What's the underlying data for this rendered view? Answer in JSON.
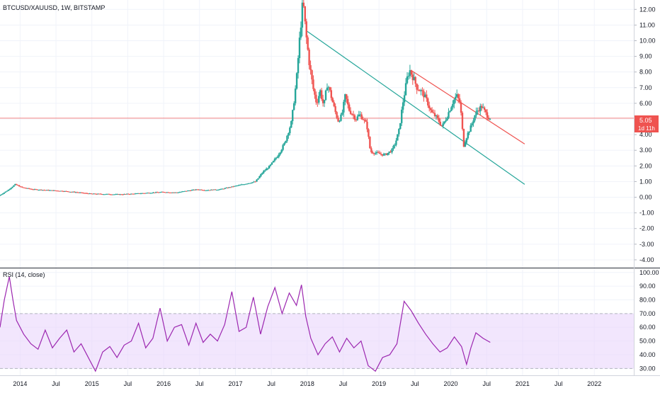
{
  "chart_title": "BTCUSD/XAUUSD, 1W, BITSTAMP",
  "indicator_title": "RSI (14, close)",
  "price_badge": {
    "value": "5.05",
    "countdown": "1d 11h"
  },
  "colors": {
    "up": "#26a69a",
    "down": "#ef5350",
    "support_line": "#26a69a",
    "resistance_line": "#ef5350",
    "price_line": "#ef5350",
    "rsi_line": "#9c27b0",
    "rsi_band": "#e9d5fb",
    "grid": "#f0f3fa",
    "axis_text": "#131722"
  },
  "chart_data": [
    {
      "type": "candlestick",
      "title": "BTCUSD/XAUUSD, 1W, BITSTAMP",
      "x_ticks": [
        "2014",
        "Jul",
        "2015",
        "Jul",
        "2016",
        "Jul",
        "2017",
        "Jul",
        "2018",
        "Jul",
        "2019",
        "Jul",
        "2020",
        "Jul",
        "2021",
        "Jul",
        "2022"
      ],
      "x_range": [
        2013.72,
        2022.55
      ],
      "y_ticks": [
        "12.00",
        "11.00",
        "10.00",
        "9.00",
        "8.00",
        "7.00",
        "6.00",
        "5.00",
        "4.00",
        "3.00",
        "2.00",
        "1.00",
        "0.00",
        "-1.00",
        "-2.00",
        "-3.00",
        "-4.00"
      ],
      "y_range": [
        -4.5,
        12.6
      ],
      "grid": true,
      "price_path": [
        [
          2013.72,
          0.08
        ],
        [
          2013.85,
          0.45
        ],
        [
          2013.95,
          0.82
        ],
        [
          2014.05,
          0.62
        ],
        [
          2014.2,
          0.5
        ],
        [
          2014.4,
          0.45
        ],
        [
          2014.6,
          0.4
        ],
        [
          2014.8,
          0.32
        ],
        [
          2015.0,
          0.22
        ],
        [
          2015.2,
          0.2
        ],
        [
          2015.4,
          0.18
        ],
        [
          2015.6,
          0.22
        ],
        [
          2015.8,
          0.28
        ],
        [
          2016.0,
          0.33
        ],
        [
          2016.2,
          0.3
        ],
        [
          2016.4,
          0.45
        ],
        [
          2016.5,
          0.5
        ],
        [
          2016.6,
          0.45
        ],
        [
          2016.8,
          0.5
        ],
        [
          2017.0,
          0.7
        ],
        [
          2017.1,
          0.8
        ],
        [
          2017.2,
          0.9
        ],
        [
          2017.3,
          1.0
        ],
        [
          2017.4,
          1.6
        ],
        [
          2017.5,
          2.0
        ],
        [
          2017.6,
          2.6
        ],
        [
          2017.7,
          3.4
        ],
        [
          2017.8,
          4.8
        ],
        [
          2017.87,
          7.5
        ],
        [
          2017.92,
          10.5
        ],
        [
          2017.96,
          12.6
        ],
        [
          2018.0,
          10.5
        ],
        [
          2018.05,
          8.5
        ],
        [
          2018.1,
          7.0
        ],
        [
          2018.15,
          6.0
        ],
        [
          2018.2,
          6.8
        ],
        [
          2018.25,
          5.8
        ],
        [
          2018.3,
          7.3
        ],
        [
          2018.35,
          6.5
        ],
        [
          2018.4,
          5.6
        ],
        [
          2018.45,
          4.9
        ],
        [
          2018.5,
          5.2
        ],
        [
          2018.55,
          6.5
        ],
        [
          2018.6,
          5.6
        ],
        [
          2018.7,
          5.0
        ],
        [
          2018.75,
          5.3
        ],
        [
          2018.8,
          5.0
        ],
        [
          2018.85,
          4.6
        ],
        [
          2018.9,
          2.9
        ],
        [
          2019.0,
          2.8
        ],
        [
          2019.1,
          2.7
        ],
        [
          2019.2,
          3.0
        ],
        [
          2019.25,
          3.5
        ],
        [
          2019.3,
          4.3
        ],
        [
          2019.35,
          6.0
        ],
        [
          2019.42,
          7.8
        ],
        [
          2019.45,
          8.1
        ],
        [
          2019.5,
          7.6
        ],
        [
          2019.55,
          7.0
        ],
        [
          2019.6,
          6.8
        ],
        [
          2019.65,
          6.5
        ],
        [
          2019.7,
          6.0
        ],
        [
          2019.75,
          5.4
        ],
        [
          2019.8,
          5.2
        ],
        [
          2019.85,
          4.9
        ],
        [
          2019.9,
          4.5
        ],
        [
          2019.95,
          5.0
        ],
        [
          2020.05,
          6.1
        ],
        [
          2020.1,
          6.5
        ],
        [
          2020.15,
          6.0
        ],
        [
          2020.2,
          3.3
        ],
        [
          2020.25,
          4.0
        ],
        [
          2020.3,
          4.5
        ],
        [
          2020.35,
          5.2
        ],
        [
          2020.4,
          5.6
        ],
        [
          2020.45,
          5.8
        ],
        [
          2020.5,
          5.4
        ],
        [
          2020.55,
          5.1
        ]
      ],
      "trend_lines": [
        {
          "name": "support",
          "from": [
            2018.0,
            10.6
          ],
          "to": [
            2021.03,
            0.82
          ]
        },
        {
          "name": "resistance",
          "from": [
            2019.45,
            8.1
          ],
          "to": [
            2021.03,
            3.4
          ]
        }
      ],
      "horizontal_line": 5.05,
      "last_price": 5.05
    },
    {
      "type": "line",
      "title": "RSI (14, close)",
      "y_ticks": [
        "100.00",
        "90.00",
        "80.00",
        "70.00",
        "60.00",
        "50.00",
        "40.00",
        "30.00"
      ],
      "y_range": [
        25,
        103
      ],
      "band": [
        30,
        70
      ],
      "values": [
        [
          2013.72,
          60
        ],
        [
          2013.78,
          80
        ],
        [
          2013.85,
          97
        ],
        [
          2013.9,
          80
        ],
        [
          2013.95,
          65
        ],
        [
          2014.05,
          55
        ],
        [
          2014.15,
          48
        ],
        [
          2014.25,
          44
        ],
        [
          2014.35,
          58
        ],
        [
          2014.45,
          45
        ],
        [
          2014.55,
          52
        ],
        [
          2014.65,
          58
        ],
        [
          2014.75,
          42
        ],
        [
          2014.85,
          48
        ],
        [
          2014.95,
          38
        ],
        [
          2015.05,
          28
        ],
        [
          2015.15,
          42
        ],
        [
          2015.25,
          46
        ],
        [
          2015.35,
          38
        ],
        [
          2015.45,
          47
        ],
        [
          2015.55,
          50
        ],
        [
          2015.65,
          63
        ],
        [
          2015.75,
          45
        ],
        [
          2015.85,
          52
        ],
        [
          2015.95,
          74
        ],
        [
          2016.05,
          50
        ],
        [
          2016.15,
          60
        ],
        [
          2016.25,
          62
        ],
        [
          2016.35,
          47
        ],
        [
          2016.45,
          63
        ],
        [
          2016.55,
          49
        ],
        [
          2016.65,
          55
        ],
        [
          2016.75,
          50
        ],
        [
          2016.85,
          62
        ],
        [
          2016.95,
          86
        ],
        [
          2017.05,
          57
        ],
        [
          2017.15,
          60
        ],
        [
          2017.25,
          82
        ],
        [
          2017.35,
          55
        ],
        [
          2017.45,
          75
        ],
        [
          2017.55,
          89
        ],
        [
          2017.65,
          70
        ],
        [
          2017.75,
          85
        ],
        [
          2017.85,
          76
        ],
        [
          2017.92,
          91
        ],
        [
          2017.98,
          68
        ],
        [
          2018.05,
          52
        ],
        [
          2018.15,
          40
        ],
        [
          2018.25,
          48
        ],
        [
          2018.35,
          53
        ],
        [
          2018.45,
          42
        ],
        [
          2018.55,
          52
        ],
        [
          2018.65,
          45
        ],
        [
          2018.75,
          50
        ],
        [
          2018.85,
          32
        ],
        [
          2018.95,
          28
        ],
        [
          2019.05,
          38
        ],
        [
          2019.15,
          40
        ],
        [
          2019.25,
          48
        ],
        [
          2019.35,
          79
        ],
        [
          2019.45,
          72
        ],
        [
          2019.55,
          63
        ],
        [
          2019.65,
          55
        ],
        [
          2019.75,
          48
        ],
        [
          2019.85,
          42
        ],
        [
          2019.95,
          45
        ],
        [
          2020.05,
          53
        ],
        [
          2020.15,
          46
        ],
        [
          2020.22,
          33
        ],
        [
          2020.28,
          45
        ],
        [
          2020.35,
          56
        ],
        [
          2020.45,
          52
        ],
        [
          2020.55,
          49
        ]
      ]
    }
  ]
}
